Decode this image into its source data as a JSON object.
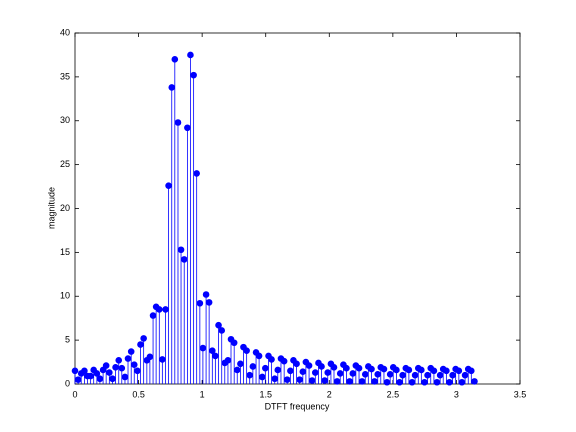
{
  "chart_data": {
    "type": "stem",
    "xlabel": "DTFT frequency",
    "ylabel": "magnitude",
    "color": "#0000ff",
    "x": [
      0,
      0.025,
      0.049,
      0.074,
      0.098,
      0.123,
      0.147,
      0.172,
      0.196,
      0.221,
      0.245,
      0.27,
      0.295,
      0.319,
      0.344,
      0.368,
      0.393,
      0.417,
      0.442,
      0.466,
      0.491,
      0.515,
      0.54,
      0.565,
      0.589,
      0.614,
      0.638,
      0.663,
      0.687,
      0.712,
      0.736,
      0.761,
      0.785,
      0.81,
      0.834,
      0.859,
      0.884,
      0.908,
      0.933,
      0.957,
      0.982,
      1.006,
      1.031,
      1.055,
      1.08,
      1.104,
      1.129,
      1.154,
      1.178,
      1.203,
      1.227,
      1.252,
      1.276,
      1.301,
      1.325,
      1.35,
      1.374,
      1.399,
      1.424,
      1.448,
      1.473,
      1.497,
      1.522,
      1.546,
      1.571,
      1.595,
      1.62,
      1.645,
      1.669,
      1.694,
      1.718,
      1.743,
      1.767,
      1.792,
      1.816,
      1.841,
      1.865,
      1.89,
      1.915,
      1.939,
      1.964,
      1.988,
      2.013,
      2.037,
      2.062,
      2.086,
      2.111,
      2.135,
      2.16,
      2.185,
      2.209,
      2.234,
      2.258,
      2.283,
      2.307,
      2.332,
      2.356,
      2.381,
      2.405,
      2.43,
      2.454,
      2.479,
      2.503,
      2.528,
      2.553,
      2.577,
      2.602,
      2.626,
      2.651,
      2.675,
      2.7,
      2.724,
      2.749,
      2.773,
      2.798,
      2.823,
      2.847,
      2.872,
      2.896,
      2.921,
      2.945,
      2.97,
      2.994,
      3.019,
      3.043,
      3.068,
      3.093,
      3.117,
      3.142
    ],
    "values": [
      1.5,
      0.5,
      1.2,
      1.5,
      0.9,
      0.9,
      1.6,
      1.2,
      0.6,
      1.6,
      2.1,
      1.3,
      0.6,
      1.9,
      2.7,
      1.8,
      0.8,
      2.9,
      3.7,
      2.2,
      1.5,
      4.5,
      5.2,
      2.7,
      3.1,
      7.8,
      8.8,
      8.5,
      2.8,
      8.5,
      22.6,
      33.8,
      37,
      29.8,
      15.3,
      14.2,
      29.2,
      37.5,
      35.2,
      24,
      9.2,
      4.1,
      10.2,
      9.3,
      3.8,
      3.2,
      6.7,
      6.1,
      2.4,
      2.7,
      5.1,
      4.7,
      1.6,
      2.3,
      4.2,
      3.8,
      1.0,
      2.0,
      3.6,
      3.2,
      0.8,
      1.8,
      3.2,
      2.8,
      0.6,
      1.6,
      2.9,
      2.6,
      0.5,
      1.5,
      2.7,
      2.3,
      0.5,
      1.4,
      2.5,
      2.1,
      0.4,
      1.3,
      2.4,
      2.0,
      0.4,
      1.3,
      2.3,
      1.9,
      0.3,
      1.2,
      2.2,
      1.8,
      0.3,
      1.2,
      2.1,
      1.8,
      0.3,
      1.1,
      2.0,
      1.7,
      0.3,
      1.1,
      1.9,
      1.7,
      0.2,
      1.1,
      1.9,
      1.6,
      0.2,
      1.0,
      1.8,
      1.6,
      0.2,
      1.0,
      1.8,
      1.6,
      0.2,
      1.0,
      1.8,
      1.5,
      0.2,
      1.0,
      1.7,
      1.5,
      0.2,
      1.0,
      1.7,
      1.5,
      0.2,
      1.0,
      1.7,
      1.5,
      0.3
    ],
    "xlim": [
      0,
      3.5
    ],
    "xticks": [
      0,
      0.5,
      1,
      1.5,
      2,
      2.5,
      3,
      3.5
    ],
    "ylim": [
      0,
      40
    ],
    "yticks": [
      0,
      5,
      10,
      15,
      20,
      25,
      30,
      35,
      40
    ]
  }
}
